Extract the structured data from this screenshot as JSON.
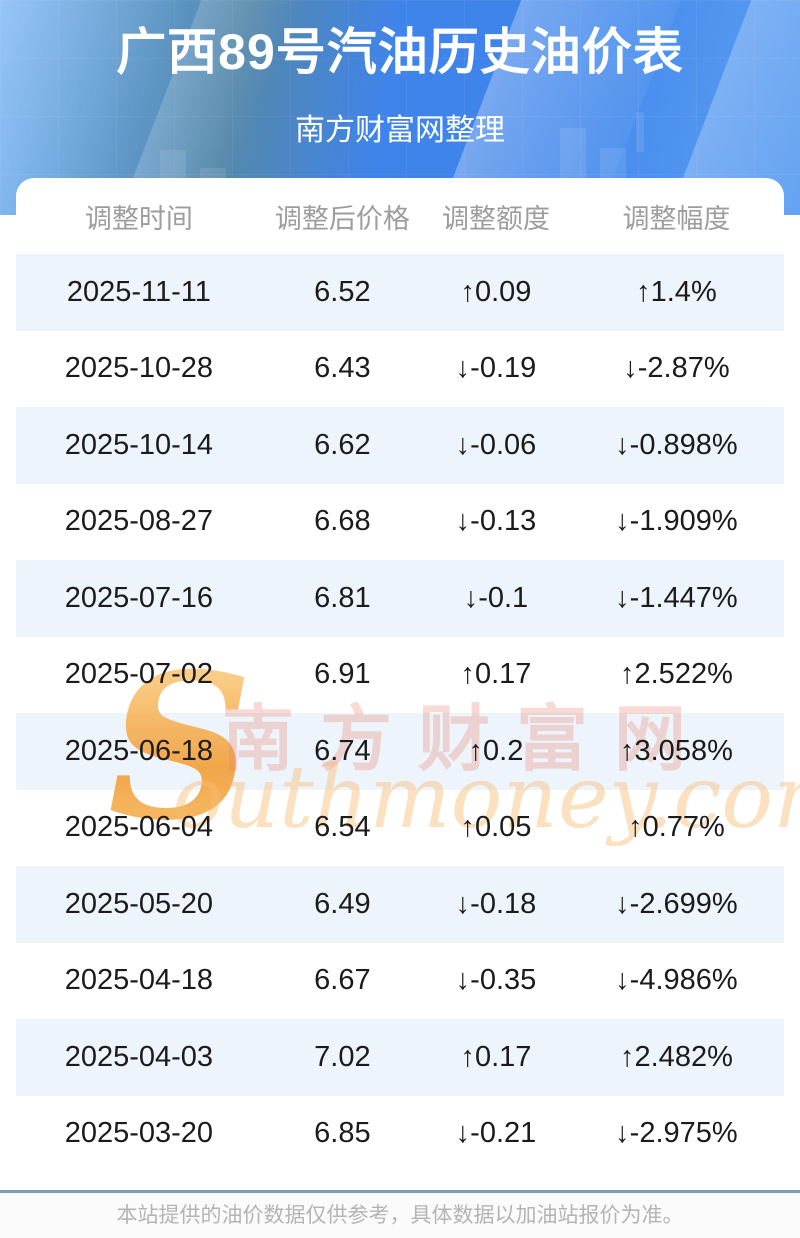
{
  "header": {
    "title": "广西89号汽油历史油价表",
    "subtitle": "南方财富网整理"
  },
  "table": {
    "columns": [
      "调整时间",
      "调整后价格",
      "调整额度",
      "调整幅度"
    ],
    "up_arrow": "↑",
    "down_arrow": "↓",
    "rows": [
      {
        "date": "2025-11-11",
        "price": "6.52",
        "change": "0.09",
        "change_pct": "1.4%",
        "direction": "up"
      },
      {
        "date": "2025-10-28",
        "price": "6.43",
        "change": "-0.19",
        "change_pct": "-2.87%",
        "direction": "down"
      },
      {
        "date": "2025-10-14",
        "price": "6.62",
        "change": "-0.06",
        "change_pct": "-0.898%",
        "direction": "down"
      },
      {
        "date": "2025-08-27",
        "price": "6.68",
        "change": "-0.13",
        "change_pct": "-1.909%",
        "direction": "down"
      },
      {
        "date": "2025-07-16",
        "price": "6.81",
        "change": "-0.1",
        "change_pct": "-1.447%",
        "direction": "down"
      },
      {
        "date": "2025-07-02",
        "price": "6.91",
        "change": "0.17",
        "change_pct": "2.522%",
        "direction": "up"
      },
      {
        "date": "2025-06-18",
        "price": "6.74",
        "change": "0.2",
        "change_pct": "3.058%",
        "direction": "up"
      },
      {
        "date": "2025-06-04",
        "price": "6.54",
        "change": "0.05",
        "change_pct": "0.77%",
        "direction": "up"
      },
      {
        "date": "2025-05-20",
        "price": "6.49",
        "change": "-0.18",
        "change_pct": "-2.699%",
        "direction": "down"
      },
      {
        "date": "2025-04-18",
        "price": "6.67",
        "change": "-0.35",
        "change_pct": "-4.986%",
        "direction": "down"
      },
      {
        "date": "2025-04-03",
        "price": "7.02",
        "change": "0.17",
        "change_pct": "2.482%",
        "direction": "up"
      },
      {
        "date": "2025-03-20",
        "price": "6.85",
        "change": "-0.21",
        "change_pct": "-2.975%",
        "direction": "down"
      }
    ]
  },
  "watermark": {
    "s": "S",
    "cn": "南方财富网",
    "en": "outhmoney.com"
  },
  "footer": {
    "disclaimer": "本站提供的油价数据仅供参考，具体数据以加油站报价为准。"
  },
  "colors": {
    "up": "#ee1212",
    "down": "#0e810e",
    "stripe": "#eef4fb",
    "hero_light": "#6cadf6",
    "hero_dark": "#3f84ea"
  }
}
